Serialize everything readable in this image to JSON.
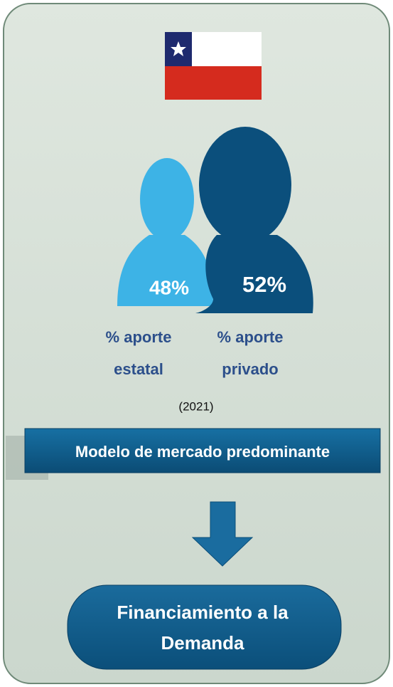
{
  "people": [
    {
      "share": "48%",
      "label_lines": [
        "% aporte",
        "estatal"
      ]
    },
    {
      "share": "52%",
      "label_lines": [
        "% aporte",
        "privado"
      ]
    }
  ],
  "year": "(2021)",
  "model": "Modelo de mercado predominante",
  "result_lines": [
    "Financiamiento a la",
    "Demanda"
  ]
}
